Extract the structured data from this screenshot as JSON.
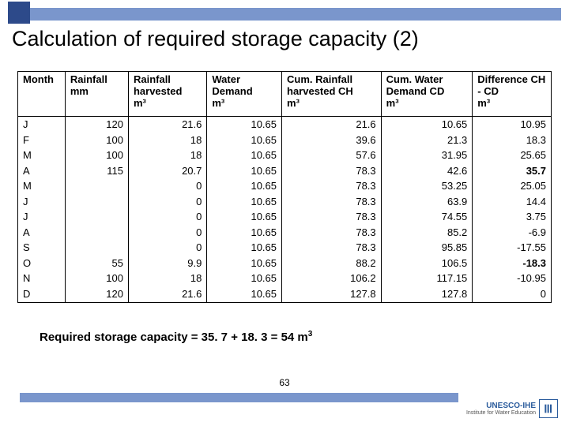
{
  "title": "Calculation of required storage capacity (2)",
  "headers": {
    "month": {
      "label": "Month",
      "unit": ""
    },
    "rainfall": {
      "label": "Rainfall",
      "unit": "mm"
    },
    "harvested": {
      "label": "Rainfall harvested",
      "unit": "m³"
    },
    "demand": {
      "label": "Water Demand",
      "unit": "m³"
    },
    "cumh": {
      "label": "Cum. Rainfall harvested CH",
      "unit": "m³"
    },
    "cumd": {
      "label": "Cum. Water Demand  CD",
      "unit": "m³"
    },
    "diff": {
      "label": "Difference CH - CD",
      "unit": "m³"
    }
  },
  "rows": [
    {
      "m": "J",
      "r": "120",
      "h": "21.6",
      "d": "10.65",
      "ch": "21.6",
      "cd": "10.65",
      "diff": "10.95",
      "bold": false
    },
    {
      "m": "F",
      "r": "100",
      "h": "18",
      "d": "10.65",
      "ch": "39.6",
      "cd": "21.3",
      "diff": "18.3",
      "bold": false
    },
    {
      "m": "M",
      "r": "100",
      "h": "18",
      "d": "10.65",
      "ch": "57.6",
      "cd": "31.95",
      "diff": "25.65",
      "bold": false
    },
    {
      "m": "A",
      "r": "115",
      "h": "20.7",
      "d": "10.65",
      "ch": "78.3",
      "cd": "42.6",
      "diff": "35.7",
      "bold": true
    },
    {
      "m": "M",
      "r": "",
      "h": "0",
      "d": "10.65",
      "ch": "78.3",
      "cd": "53.25",
      "diff": "25.05",
      "bold": false
    },
    {
      "m": "J",
      "r": "",
      "h": "0",
      "d": "10.65",
      "ch": "78.3",
      "cd": "63.9",
      "diff": "14.4",
      "bold": false
    },
    {
      "m": "J",
      "r": "",
      "h": "0",
      "d": "10.65",
      "ch": "78.3",
      "cd": "74.55",
      "diff": "3.75",
      "bold": false
    },
    {
      "m": "A",
      "r": "",
      "h": "0",
      "d": "10.65",
      "ch": "78.3",
      "cd": "85.2",
      "diff": "-6.9",
      "bold": false
    },
    {
      "m": "S",
      "r": "",
      "h": "0",
      "d": "10.65",
      "ch": "78.3",
      "cd": "95.85",
      "diff": "-17.55",
      "bold": false
    },
    {
      "m": "O",
      "r": "55",
      "h": "9.9",
      "d": "10.65",
      "ch": "88.2",
      "cd": "106.5",
      "diff": "-18.3",
      "bold": true
    },
    {
      "m": "N",
      "r": "100",
      "h": "18",
      "d": "10.65",
      "ch": "106.2",
      "cd": "117.15",
      "diff": "-10.95",
      "bold": false
    },
    {
      "m": "D",
      "r": "120",
      "h": "21.6",
      "d": "10.65",
      "ch": "127.8",
      "cd": "127.8",
      "diff": "0",
      "bold": false
    }
  ],
  "footnote_prefix": "Required storage capacity = 35. 7 + 18. 3 = 54 m",
  "footnote_sup": "3",
  "page_number": "63",
  "logo": {
    "main": "UNESCO-IHE",
    "sub": "Institute for Water Education"
  }
}
